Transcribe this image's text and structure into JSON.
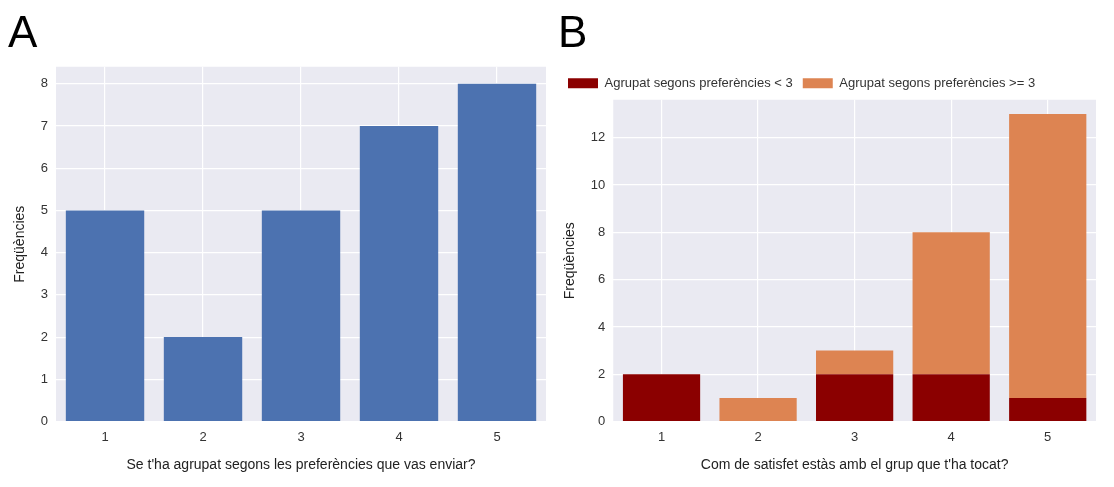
{
  "chart_data": [
    {
      "type": "bar",
      "title": "A",
      "categories": [
        "1",
        "2",
        "3",
        "4",
        "5"
      ],
      "values": [
        5,
        2,
        5,
        7,
        8
      ],
      "color": "#4c72b0",
      "xlabel": "Se t'ha agrupat segons les preferències que vas enviar?",
      "ylabel": "Freqüències",
      "ylim": [
        0,
        8.4
      ],
      "yticks": [
        0,
        1,
        2,
        3,
        4,
        5,
        6,
        7,
        8
      ],
      "grid": true,
      "legend": false
    },
    {
      "type": "bar",
      "title": "B",
      "categories": [
        "1",
        "2",
        "3",
        "4",
        "5"
      ],
      "stacked": true,
      "series": [
        {
          "name": "Agrupat segons preferències < 3",
          "color": "#8b0000",
          "values": [
            2,
            0,
            2,
            2,
            1
          ]
        },
        {
          "name": "Agrupat segons preferències >= 3",
          "color": "#dd8452",
          "values": [
            0,
            1,
            1,
            6,
            12
          ]
        }
      ],
      "xlabel": "Com de satisfet estàs amb el grup que t'ha tocat?",
      "ylabel": "Freqüències",
      "ylim": [
        0,
        13.6
      ],
      "yticks": [
        0,
        2,
        4,
        6,
        8,
        10,
        12
      ],
      "grid": true,
      "legend": "top left"
    }
  ]
}
